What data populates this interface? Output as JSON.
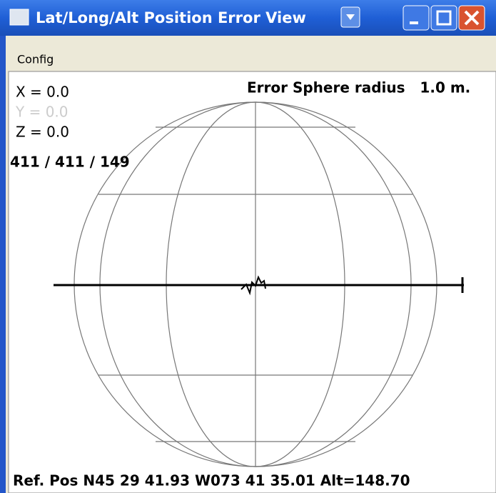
{
  "window": {
    "title": "Lat/Long/Alt Position Error View",
    "menu": [
      "Config"
    ],
    "readouts": {
      "x": "X =  0.0",
      "y": "Y =  0.0",
      "z": "Z =  0.0",
      "counts": "411 / 411 / 149"
    },
    "radius_label": "Error Sphere radius   1.0 m.",
    "reference": "Ref. Pos N45 29 41.93 W073 41 35.01 Alt=148.70"
  }
}
